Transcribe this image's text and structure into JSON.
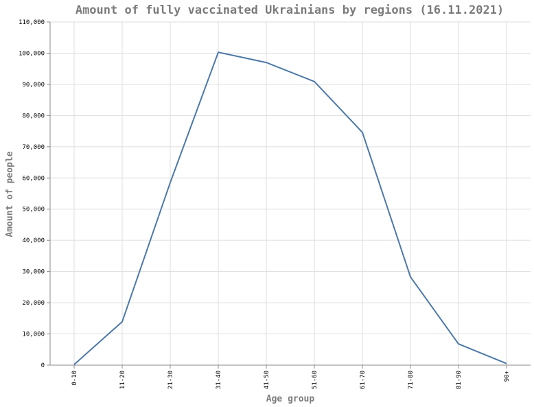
{
  "chart_data": {
    "type": "line",
    "title": "Amount of fully vaccinated Ukrainians by regions (16.11.2021)",
    "xlabel": "Age group",
    "ylabel": "Amount of people",
    "categories": [
      "0-10",
      "11-20",
      "21-30",
      "31-40",
      "41-50",
      "51-60",
      "61-70",
      "71-80",
      "81-90",
      "90+"
    ],
    "series": [
      {
        "values": [
          200,
          13900,
          58500,
          100300,
          97000,
          90900,
          74600,
          28300,
          6800,
          500
        ]
      }
    ],
    "ylim": [
      0,
      110000
    ],
    "yticks": [
      0,
      10000,
      20000,
      30000,
      40000,
      50000,
      60000,
      70000,
      80000,
      90000,
      100000,
      110000
    ],
    "ytick_labels": [
      "0",
      "10,000",
      "20,000",
      "30,000",
      "40,000",
      "50,000",
      "60,000",
      "70,000",
      "80,000",
      "90,000",
      "100,000",
      "110,000"
    ],
    "grid": true,
    "line_color": "#4c78a8"
  }
}
